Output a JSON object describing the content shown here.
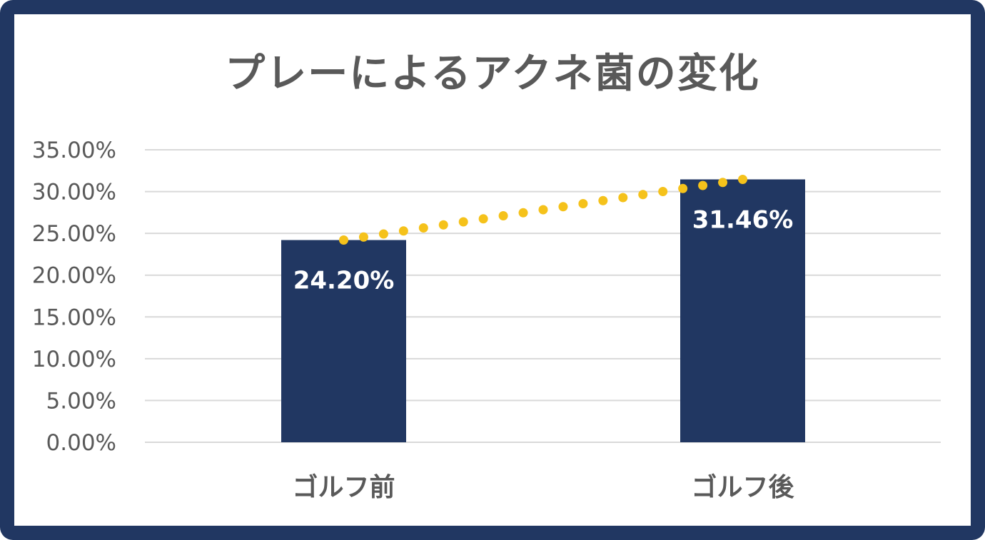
{
  "chart_data": {
    "type": "bar",
    "title": "プレーによるアクネ菌の変化",
    "categories": [
      "ゴルフ前",
      "ゴルフ後"
    ],
    "values": [
      24.2,
      31.46
    ],
    "data_labels": [
      "24.20%",
      "31.46%"
    ],
    "ylim": [
      0,
      35
    ],
    "y_ticks": [
      0,
      5,
      10,
      15,
      20,
      25,
      30,
      35
    ],
    "y_tick_labels": [
      "0.00%",
      "5.00%",
      "10.00%",
      "15.00%",
      "20.00%",
      "25.00%",
      "30.00%",
      "35.00%"
    ],
    "grid": true,
    "trendline": "dotted",
    "colors": {
      "bar": "#213762",
      "trendline": "#F5C21B",
      "grid": "#D9D9D9",
      "frame": "#213762",
      "text": "#595959"
    }
  }
}
